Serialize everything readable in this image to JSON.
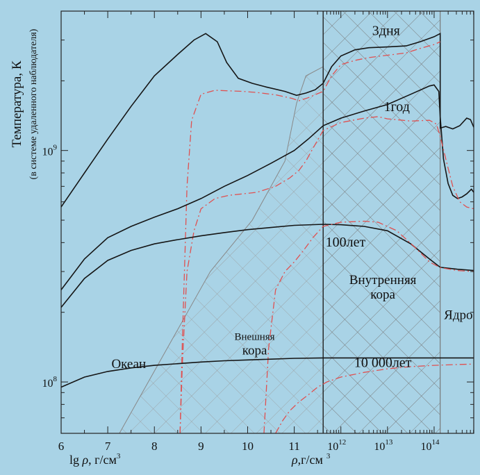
{
  "chart_data": {
    "type": "line",
    "y_scale": "log",
    "ylim": [
      60000000,
      4000000000
    ],
    "y_ticks": [
      {
        "value": 100000000,
        "base": "10",
        "exp": "8"
      },
      {
        "value": 1000000000,
        "base": "10",
        "exp": "9"
      }
    ],
    "ylabel": "Температура, К",
    "ylabel_sub": "(в системе удаленного наблюдателя)",
    "xlim": [
      6,
      14.85
    ],
    "x_ticks_lg": [
      "6",
      "7",
      "8",
      "9",
      "10",
      "11"
    ],
    "x_ticks_pow": [
      {
        "value": 12,
        "base": "10",
        "exp": "12"
      },
      {
        "value": 13,
        "base": "10",
        "exp": "13"
      },
      {
        "value": 14,
        "base": "10",
        "exp": "14"
      }
    ],
    "xlabel_left": {
      "pre": "lg ",
      "rho": "ρ",
      "post": ", г/см",
      "exp": "3"
    },
    "xlabel_right": {
      "rho": "ρ",
      "post": ",г/см",
      "exp": "3"
    },
    "annotations": [
      {
        "text": "3дня",
        "x": 12.97,
        "y": 3150000000
      },
      {
        "text": "1год",
        "x": 13.2,
        "y": 1480000000
      },
      {
        "text": "100лет",
        "x": 12.1,
        "y": 385000000
      },
      {
        "text": "10 000лет",
        "x": 12.9,
        "y": 116000000
      }
    ],
    "region_labels": [
      {
        "lines": [
          "Океан"
        ],
        "x": 7.45,
        "y": 115000000
      },
      {
        "lines": [
          "Внешняя",
          "кора"
        ],
        "x": 10.15,
        "y": 152000000
      },
      {
        "lines": [
          "Внутренняя",
          "кора"
        ],
        "x": 12.9,
        "y": 265000000
      },
      {
        "lines": [
          "Ядро"
        ],
        "x": 14.52,
        "y": 187000000
      }
    ],
    "vertical_lines": [
      11.62,
      14.13
    ],
    "series": [
      {
        "style": "solid",
        "points": [
          [
            6,
            570000000
          ],
          [
            6.5,
            800000000
          ],
          [
            7,
            1120000000
          ],
          [
            7.5,
            1550000000
          ],
          [
            8,
            2100000000
          ],
          [
            8.5,
            2600000000
          ],
          [
            8.85,
            3000000000
          ],
          [
            9.1,
            3200000000
          ],
          [
            9.35,
            2950000000
          ],
          [
            9.55,
            2400000000
          ],
          [
            9.8,
            2050000000
          ],
          [
            10.1,
            1950000000
          ],
          [
            10.4,
            1880000000
          ],
          [
            10.8,
            1800000000
          ],
          [
            11.05,
            1730000000
          ],
          [
            11.25,
            1770000000
          ],
          [
            11.45,
            1830000000
          ],
          [
            11.62,
            1950000000
          ],
          [
            11.8,
            2300000000
          ],
          [
            12,
            2560000000
          ],
          [
            12.3,
            2720000000
          ],
          [
            12.6,
            2780000000
          ],
          [
            13,
            2800000000
          ],
          [
            13.4,
            2830000000
          ],
          [
            13.7,
            2950000000
          ],
          [
            14,
            3100000000
          ],
          [
            14.13,
            3200000000
          ],
          [
            14.13,
            1250000000
          ],
          [
            14.25,
            1270000000
          ],
          [
            14.4,
            1240000000
          ],
          [
            14.55,
            1280000000
          ],
          [
            14.7,
            1380000000
          ],
          [
            14.78,
            1360000000
          ],
          [
            14.85,
            1260000000
          ]
        ]
      },
      {
        "style": "dashdot",
        "points": [
          [
            8.55,
            60000000
          ],
          [
            8.6,
            150000000
          ],
          [
            8.7,
            700000000
          ],
          [
            8.8,
            1350000000
          ],
          [
            9,
            1750000000
          ],
          [
            9.3,
            1820000000
          ],
          [
            9.6,
            1810000000
          ],
          [
            9.9,
            1800000000
          ],
          [
            10.2,
            1780000000
          ],
          [
            10.6,
            1740000000
          ],
          [
            10.95,
            1680000000
          ],
          [
            11.1,
            1640000000
          ],
          [
            11.3,
            1690000000
          ],
          [
            11.5,
            1760000000
          ],
          [
            11.62,
            1800000000
          ],
          [
            11.8,
            2100000000
          ],
          [
            12,
            2350000000
          ],
          [
            12.3,
            2450000000
          ],
          [
            12.6,
            2520000000
          ],
          [
            13,
            2580000000
          ],
          [
            13.4,
            2640000000
          ],
          [
            13.7,
            2760000000
          ],
          [
            14,
            2870000000
          ],
          [
            14.13,
            2950000000
          ]
        ]
      },
      {
        "style": "solid",
        "points": [
          [
            6,
            250000000
          ],
          [
            6.5,
            340000000
          ],
          [
            7,
            420000000
          ],
          [
            7.5,
            470000000
          ],
          [
            8,
            515000000
          ],
          [
            8.5,
            560000000
          ],
          [
            9,
            620000000
          ],
          [
            9.5,
            700000000
          ],
          [
            10,
            780000000
          ],
          [
            10.5,
            880000000
          ],
          [
            11,
            1000000000
          ],
          [
            11.3,
            1120000000
          ],
          [
            11.62,
            1280000000
          ],
          [
            12,
            1380000000
          ],
          [
            12.5,
            1480000000
          ],
          [
            13,
            1580000000
          ],
          [
            13.5,
            1750000000
          ],
          [
            13.9,
            1900000000
          ],
          [
            14,
            1920000000
          ],
          [
            14.1,
            1800000000
          ],
          [
            14.13,
            1400000000
          ],
          [
            14.2,
            920000000
          ],
          [
            14.3,
            720000000
          ],
          [
            14.4,
            640000000
          ],
          [
            14.5,
            620000000
          ],
          [
            14.6,
            630000000
          ],
          [
            14.7,
            650000000
          ],
          [
            14.8,
            680000000
          ],
          [
            14.85,
            660000000
          ]
        ]
      },
      {
        "style": "dashdot",
        "points": [
          [
            8.55,
            60000000
          ],
          [
            8.6,
            120000000
          ],
          [
            8.7,
            300000000
          ],
          [
            8.85,
            450000000
          ],
          [
            9,
            560000000
          ],
          [
            9.3,
            620000000
          ],
          [
            9.6,
            640000000
          ],
          [
            9.9,
            650000000
          ],
          [
            10.2,
            660000000
          ],
          [
            10.6,
            700000000
          ],
          [
            10.9,
            760000000
          ],
          [
            11.1,
            820000000
          ],
          [
            11.25,
            900000000
          ],
          [
            11.4,
            1020000000
          ],
          [
            11.62,
            1220000000
          ],
          [
            12,
            1320000000
          ],
          [
            12.5,
            1380000000
          ],
          [
            12.8,
            1400000000
          ],
          [
            13,
            1370000000
          ],
          [
            13.5,
            1340000000
          ],
          [
            13.9,
            1350000000
          ],
          [
            14.05,
            1300000000
          ],
          [
            14.13,
            1150000000
          ],
          [
            14.25,
            920000000
          ],
          [
            14.4,
            700000000
          ],
          [
            14.55,
            600000000
          ],
          [
            14.7,
            570000000
          ],
          [
            14.85,
            560000000
          ]
        ]
      },
      {
        "style": "solid",
        "points": [
          [
            6,
            210000000
          ],
          [
            6.5,
            280000000
          ],
          [
            7,
            335000000
          ],
          [
            7.5,
            370000000
          ],
          [
            8,
            395000000
          ],
          [
            8.5,
            412000000
          ],
          [
            9,
            428000000
          ],
          [
            9.5,
            442000000
          ],
          [
            10,
            455000000
          ],
          [
            10.5,
            465000000
          ],
          [
            11,
            475000000
          ],
          [
            11.62,
            480000000
          ],
          [
            12,
            478000000
          ],
          [
            12.5,
            470000000
          ],
          [
            13,
            450000000
          ],
          [
            13.5,
            395000000
          ],
          [
            13.9,
            340000000
          ],
          [
            14.13,
            313000000
          ],
          [
            14.5,
            307000000
          ],
          [
            14.85,
            303000000
          ]
        ]
      },
      {
        "style": "dashdot",
        "points": [
          [
            10.35,
            60000000
          ],
          [
            10.45,
            140000000
          ],
          [
            10.6,
            250000000
          ],
          [
            10.8,
            300000000
          ],
          [
            11,
            330000000
          ],
          [
            11.2,
            370000000
          ],
          [
            11.4,
            420000000
          ],
          [
            11.62,
            470000000
          ],
          [
            12,
            490000000
          ],
          [
            12.5,
            495000000
          ],
          [
            12.8,
            490000000
          ],
          [
            13.2,
            450000000
          ],
          [
            13.6,
            380000000
          ],
          [
            13.9,
            330000000
          ],
          [
            14.13,
            312000000
          ],
          [
            14.5,
            303000000
          ],
          [
            14.85,
            300000000
          ]
        ]
      },
      {
        "style": "solid",
        "points": [
          [
            6,
            95000000
          ],
          [
            6.5,
            105000000
          ],
          [
            7,
            111000000
          ],
          [
            7.5,
            115000000
          ],
          [
            8,
            118000000
          ],
          [
            8.5,
            120000000
          ],
          [
            9,
            122000000
          ],
          [
            9.5,
            123500000
          ],
          [
            10,
            124500000
          ],
          [
            10.5,
            125500000
          ],
          [
            11,
            126500000
          ],
          [
            11.62,
            127000000
          ],
          [
            12,
            127000000
          ],
          [
            13,
            127000000
          ],
          [
            14,
            127000000
          ],
          [
            14.85,
            127000000
          ]
        ]
      },
      {
        "style": "dashdot",
        "points": [
          [
            10.6,
            60000000
          ],
          [
            10.75,
            68000000
          ],
          [
            10.9,
            75000000
          ],
          [
            11.1,
            82000000
          ],
          [
            11.3,
            88000000
          ],
          [
            11.5,
            95000000
          ],
          [
            11.7,
            100000000
          ],
          [
            12,
            105000000
          ],
          [
            12.5,
            110000000
          ],
          [
            13,
            114000000
          ],
          [
            13.5,
            116500000
          ],
          [
            14,
            118000000
          ],
          [
            14.5,
            119000000
          ],
          [
            14.85,
            119500000
          ]
        ]
      }
    ]
  }
}
